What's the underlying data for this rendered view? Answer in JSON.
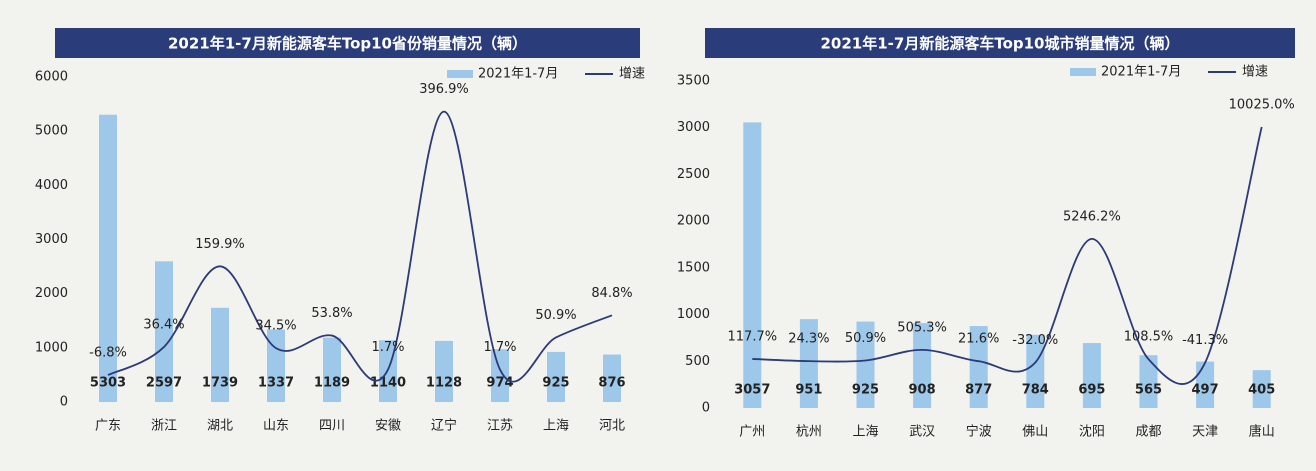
{
  "chart_data": [
    {
      "type": "bar",
      "title": "2021年1-7月新能源客车Top10省份销量情况（辆）",
      "categories": [
        "广东",
        "浙江",
        "湖北",
        "山东",
        "四川",
        "安徽",
        "辽宁",
        "江苏",
        "上海",
        "河北"
      ],
      "series": [
        {
          "name": "2021年1-7月",
          "type": "bar",
          "color": "#9dc8ea",
          "values": [
            5303,
            2597,
            1739,
            1337,
            1189,
            1140,
            1128,
            974,
            925,
            876
          ]
        },
        {
          "name": "增速",
          "type": "line",
          "axis": "y2",
          "color": "#2c3a78",
          "values": [
            -6.8,
            36.4,
            159.9,
            34.5,
            53.8,
            1.7,
            396.9,
            1.7,
            50.9,
            84.8
          ],
          "value_labels": [
            "-6.8%",
            "36.4%",
            "159.9%",
            "34.5%",
            "53.8%",
            "1.7%",
            "396.9%",
            "1.7%",
            "50.9%",
            "84.8%"
          ]
        }
      ],
      "ylim": [
        0,
        6000
      ],
      "yticks": [
        0,
        1000,
        2000,
        3000,
        4000,
        5000,
        6000
      ],
      "y2lim": [
        -48,
        450
      ],
      "legend": "top-right"
    },
    {
      "type": "bar",
      "title": "2021年1-7月新能源客车Top10城市销量情况（辆）",
      "categories": [
        "广州",
        "杭州",
        "上海",
        "武汉",
        "宁波",
        "佛山",
        "沈阳",
        "成都",
        "天津",
        "唐山"
      ],
      "series": [
        {
          "name": "2021年1-7月",
          "type": "bar",
          "color": "#9dc8ea",
          "values": [
            3057,
            951,
            925,
            908,
            877,
            784,
            695,
            565,
            497,
            405
          ]
        },
        {
          "name": "增速",
          "type": "line",
          "axis": "y2",
          "color": "#2c3a78",
          "values": [
            117.7,
            24.3,
            50.9,
            505.3,
            21.6,
            -32.0,
            5246.2,
            108.5,
            -41.3,
            10025.0
          ],
          "value_labels": [
            "117.7%",
            "24.3%",
            "50.9%",
            "505.3%",
            "21.6%",
            "-32.0%",
            "5246.2%",
            "108.5%",
            "-41.3%",
            "10025.0%"
          ]
        }
      ],
      "ylim": [
        0,
        3500
      ],
      "yticks": [
        0,
        500,
        1000,
        1500,
        2000,
        2500,
        3000,
        3500
      ],
      "y2lim": [
        -1977,
        11989
      ],
      "legend": "top-right"
    }
  ]
}
